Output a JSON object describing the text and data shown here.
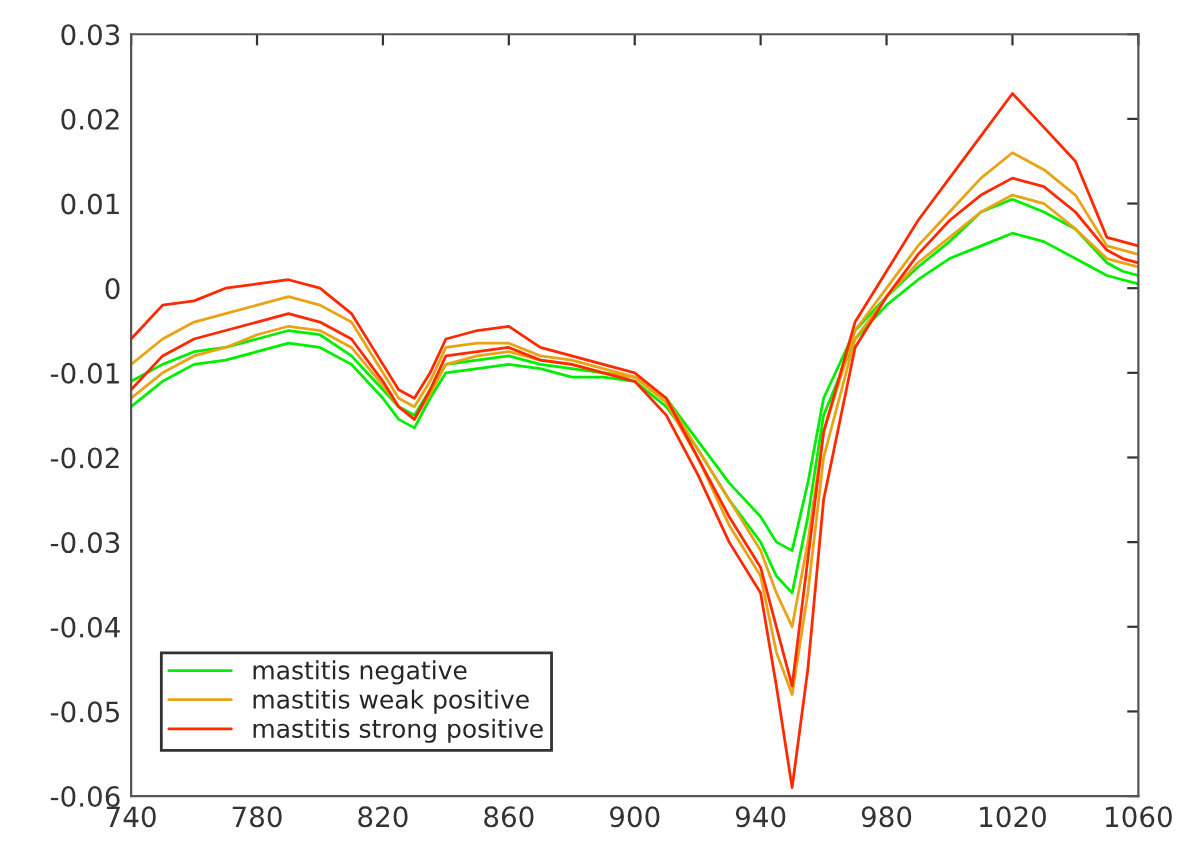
{
  "chart_data": {
    "type": "line",
    "x": [
      740,
      750,
      760,
      770,
      780,
      790,
      800,
      810,
      820,
      825,
      830,
      835,
      840,
      850,
      860,
      870,
      880,
      890,
      900,
      910,
      920,
      930,
      940,
      945,
      950,
      955,
      960,
      970,
      980,
      990,
      1000,
      1010,
      1020,
      1030,
      1040,
      1050,
      1055,
      1060
    ],
    "xlim": [
      740,
      1060
    ],
    "xticks": [
      740,
      780,
      820,
      860,
      900,
      940,
      980,
      1020,
      1060
    ],
    "ylim": [
      -0.06,
      0.03
    ],
    "yticks": [
      -0.06,
      -0.05,
      -0.04,
      -0.03,
      -0.02,
      -0.01,
      0,
      0.01,
      0.02,
      0.03
    ],
    "grid": false,
    "legend": "bottom left",
    "line_style": "solid",
    "series": [
      {
        "name": "mastitis negative",
        "color": "#00ee00",
        "values": [
          -0.014,
          -0.011,
          -0.009,
          -0.0085,
          -0.0075,
          -0.0065,
          -0.007,
          -0.009,
          -0.013,
          -0.0155,
          -0.0165,
          -0.013,
          -0.01,
          -0.0095,
          -0.009,
          -0.0095,
          -0.0105,
          -0.0105,
          -0.011,
          -0.014,
          -0.019,
          -0.025,
          -0.03,
          -0.034,
          -0.036,
          -0.027,
          -0.015,
          -0.006,
          -0.002,
          0.001,
          0.0035,
          0.005,
          0.0065,
          0.0055,
          0.0035,
          0.0015,
          0.001,
          0.0005
        ]
      },
      {
        "color": "#00ee00",
        "values": [
          -0.011,
          -0.009,
          -0.0075,
          -0.007,
          -0.006,
          -0.005,
          -0.0055,
          -0.008,
          -0.012,
          -0.014,
          -0.015,
          -0.012,
          -0.009,
          -0.0085,
          -0.008,
          -0.009,
          -0.0095,
          -0.01,
          -0.0105,
          -0.013,
          -0.018,
          -0.023,
          -0.027,
          -0.03,
          -0.031,
          -0.023,
          -0.013,
          -0.005,
          -0.001,
          0.0025,
          0.0055,
          0.009,
          0.0105,
          0.009,
          0.007,
          0.003,
          0.002,
          0.0015
        ]
      },
      {
        "name": "mastitis weak positive",
        "color": "#e8a317",
        "values": [
          -0.013,
          -0.01,
          -0.008,
          -0.007,
          -0.0055,
          -0.0045,
          -0.005,
          -0.007,
          -0.0115,
          -0.014,
          -0.0155,
          -0.0125,
          -0.009,
          -0.008,
          -0.0075,
          -0.0085,
          -0.009,
          -0.01,
          -0.0105,
          -0.0135,
          -0.02,
          -0.028,
          -0.034,
          -0.043,
          -0.048,
          -0.036,
          -0.02,
          -0.006,
          -0.001,
          0.003,
          0.006,
          0.009,
          0.011,
          0.01,
          0.007,
          0.0035,
          0.003,
          0.0025
        ]
      },
      {
        "color": "#e8a317",
        "values": [
          -0.009,
          -0.006,
          -0.004,
          -0.003,
          -0.002,
          -0.001,
          -0.002,
          -0.004,
          -0.01,
          -0.013,
          -0.014,
          -0.011,
          -0.007,
          -0.0065,
          -0.0065,
          -0.008,
          -0.0085,
          -0.0095,
          -0.0105,
          -0.013,
          -0.019,
          -0.025,
          -0.031,
          -0.036,
          -0.04,
          -0.03,
          -0.017,
          -0.005,
          0.0,
          0.005,
          0.009,
          0.013,
          0.016,
          0.014,
          0.011,
          0.005,
          0.0045,
          0.004
        ]
      },
      {
        "name": "mastitis strong positive",
        "color": "#ff2a00",
        "values": [
          -0.012,
          -0.008,
          -0.006,
          -0.005,
          -0.004,
          -0.003,
          -0.004,
          -0.006,
          -0.011,
          -0.014,
          -0.0155,
          -0.012,
          -0.008,
          -0.0075,
          -0.007,
          -0.0085,
          -0.009,
          -0.01,
          -0.011,
          -0.015,
          -0.022,
          -0.03,
          -0.036,
          -0.047,
          -0.059,
          -0.045,
          -0.025,
          -0.007,
          -0.001,
          0.004,
          0.008,
          0.011,
          0.013,
          0.012,
          0.009,
          0.0045,
          0.0035,
          0.003
        ]
      },
      {
        "color": "#ff2a00",
        "values": [
          -0.006,
          -0.002,
          -0.0015,
          0.0,
          0.0005,
          0.001,
          0.0,
          -0.003,
          -0.009,
          -0.012,
          -0.013,
          -0.01,
          -0.006,
          -0.005,
          -0.0045,
          -0.007,
          -0.008,
          -0.009,
          -0.01,
          -0.013,
          -0.02,
          -0.027,
          -0.033,
          -0.04,
          -0.047,
          -0.032,
          -0.017,
          -0.004,
          0.002,
          0.008,
          0.013,
          0.018,
          0.023,
          0.019,
          0.015,
          0.006,
          0.0055,
          0.005
        ]
      }
    ]
  }
}
